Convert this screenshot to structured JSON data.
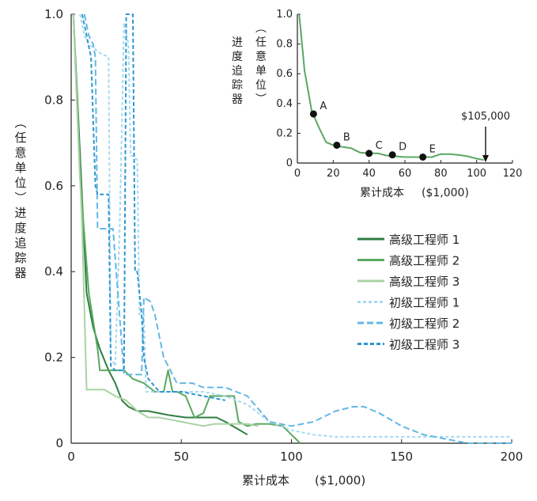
{
  "chart_data": [
    {
      "type": "line",
      "xlabel": "累计成本",
      "xlabel_unit": "($1,000)",
      "ylabel": "（任意单位）进度追踪器",
      "xlim": [
        0,
        200
      ],
      "ylim": [
        0,
        1.0
      ],
      "xticks": [
        "0",
        "50",
        "100",
        "150",
        "200"
      ],
      "yticks": [
        "0",
        "0.2",
        "0.4",
        "0.6",
        "0.8",
        "1.0"
      ],
      "legend_position": "right-middle",
      "series": [
        {
          "name": "高级工程师 1",
          "color": "#2e7d40",
          "dash": "solid",
          "width": 2,
          "x": [
            1,
            7,
            10,
            13,
            17,
            20,
            23,
            26,
            30,
            35,
            40,
            45,
            52,
            58,
            62,
            66,
            70,
            75,
            80
          ],
          "y": [
            1.0,
            0.35,
            0.27,
            0.22,
            0.17,
            0.14,
            0.1,
            0.085,
            0.075,
            0.075,
            0.07,
            0.065,
            0.06,
            0.06,
            0.06,
            0.06,
            0.05,
            0.035,
            0.02
          ]
        },
        {
          "name": "高级工程师 2",
          "color": "#5aa862",
          "dash": "solid",
          "width": 2,
          "x": [
            1,
            4,
            8,
            12,
            13,
            20,
            24,
            28,
            33,
            38,
            42,
            44,
            46,
            48,
            52,
            56,
            60,
            63,
            66,
            70,
            74,
            76,
            80,
            84,
            90,
            96,
            100,
            104
          ],
          "y": [
            1.0,
            0.62,
            0.35,
            0.22,
            0.17,
            0.17,
            0.17,
            0.15,
            0.14,
            0.12,
            0.12,
            0.17,
            0.12,
            0.12,
            0.11,
            0.06,
            0.07,
            0.11,
            0.11,
            0.11,
            0.11,
            0.05,
            0.04,
            0.045,
            0.045,
            0.04,
            0.02,
            0.0
          ]
        },
        {
          "name": "高级工程师 3",
          "color": "#a9d3a4",
          "dash": "solid",
          "width": 2,
          "x": [
            1,
            5,
            7,
            15,
            20,
            25,
            30,
            35,
            40,
            45,
            50,
            55,
            60,
            65,
            70,
            75,
            80,
            85
          ],
          "y": [
            1.0,
            0.5,
            0.125,
            0.125,
            0.11,
            0.1,
            0.075,
            0.06,
            0.06,
            0.055,
            0.05,
            0.045,
            0.04,
            0.045,
            0.045,
            0.045,
            0.045,
            0.04
          ]
        },
        {
          "name": "初级工程师 1",
          "color": "#a6d8f0",
          "dash": "4,3",
          "width": 2,
          "x": [
            4,
            6,
            8,
            13,
            17,
            18,
            20,
            22,
            24,
            26,
            27,
            28,
            30,
            31,
            33,
            34,
            40,
            50,
            60,
            70,
            80,
            90,
            95,
            100,
            110,
            120,
            130,
            140,
            150,
            160,
            170,
            180,
            200
          ],
          "y": [
            1.0,
            0.95,
            0.93,
            0.91,
            0.9,
            0.2,
            0.18,
            0.5,
            0.98,
            0.93,
            0.67,
            0.67,
            0.66,
            0.3,
            0.3,
            0.12,
            0.12,
            0.12,
            0.12,
            0.11,
            0.09,
            0.05,
            0.04,
            0.03,
            0.02,
            0.015,
            0.015,
            0.015,
            0.015,
            0.015,
            0.015,
            0.015,
            0.015
          ]
        },
        {
          "name": "初级工程师 2",
          "color": "#62b8e3",
          "dash": "8,4",
          "width": 2,
          "x": [
            6,
            8,
            10,
            11,
            12,
            14,
            16,
            19,
            24,
            28,
            32,
            33,
            36,
            38,
            42,
            48,
            55,
            60,
            65,
            70,
            75,
            80,
            90,
            100,
            110,
            120,
            128,
            133,
            140,
            150,
            160,
            170,
            180,
            200
          ],
          "y": [
            1.0,
            0.95,
            0.93,
            0.9,
            0.5,
            0.5,
            0.5,
            0.5,
            0.16,
            0.16,
            0.16,
            0.34,
            0.33,
            0.3,
            0.2,
            0.14,
            0.14,
            0.13,
            0.13,
            0.13,
            0.12,
            0.11,
            0.05,
            0.04,
            0.05,
            0.075,
            0.085,
            0.085,
            0.07,
            0.04,
            0.02,
            0.01,
            0.0,
            0.0
          ]
        },
        {
          "name": "初级工程师 3",
          "color": "#2b96d0",
          "dash": "5,3",
          "width": 2,
          "x": [
            5,
            7,
            9,
            11,
            12,
            17,
            18,
            20,
            24,
            25,
            28,
            29,
            30,
            32,
            33,
            35,
            40,
            50,
            60,
            70
          ],
          "y": [
            1.0,
            0.95,
            0.9,
            0.6,
            0.58,
            0.58,
            0.18,
            0.17,
            0.17,
            1.0,
            1.0,
            0.4,
            0.4,
            0.3,
            0.2,
            0.15,
            0.12,
            0.12,
            0.11,
            0.1
          ]
        }
      ]
    },
    {
      "type": "line",
      "xlabel": "累计成本",
      "xlabel_unit": "($1,000)",
      "ylabel": "（任意单位）进度追踪器",
      "xlim": [
        0,
        120
      ],
      "ylim": [
        0,
        1.0
      ],
      "xticks": [
        "0",
        "20",
        "40",
        "60",
        "80",
        "100",
        "120"
      ],
      "yticks": [
        "0",
        "0.2",
        "0.4",
        "0.6",
        "0.8",
        "1.0"
      ],
      "series": [
        {
          "name": "",
          "color": "#5aa862",
          "x": [
            1,
            4,
            8,
            12,
            16,
            20,
            24,
            30,
            35,
            40,
            45,
            50,
            55,
            60,
            65,
            70,
            75,
            80,
            85,
            90,
            95,
            100,
            104
          ],
          "y": [
            1.0,
            0.62,
            0.35,
            0.24,
            0.14,
            0.12,
            0.11,
            0.1,
            0.07,
            0.065,
            0.065,
            0.05,
            0.045,
            0.04,
            0.04,
            0.04,
            0.04,
            0.06,
            0.06,
            0.055,
            0.045,
            0.03,
            0.02
          ]
        }
      ],
      "milestones": [
        {
          "label": "A",
          "x": 9,
          "y": 0.33
        },
        {
          "label": "B",
          "x": 22,
          "y": 0.12
        },
        {
          "label": "C",
          "x": 40,
          "y": 0.065
        },
        {
          "label": "D",
          "x": 53,
          "y": 0.055
        },
        {
          "label": "E",
          "x": 70,
          "y": 0.04
        }
      ],
      "annotation": {
        "text": "$105,000",
        "x": 105
      }
    }
  ]
}
